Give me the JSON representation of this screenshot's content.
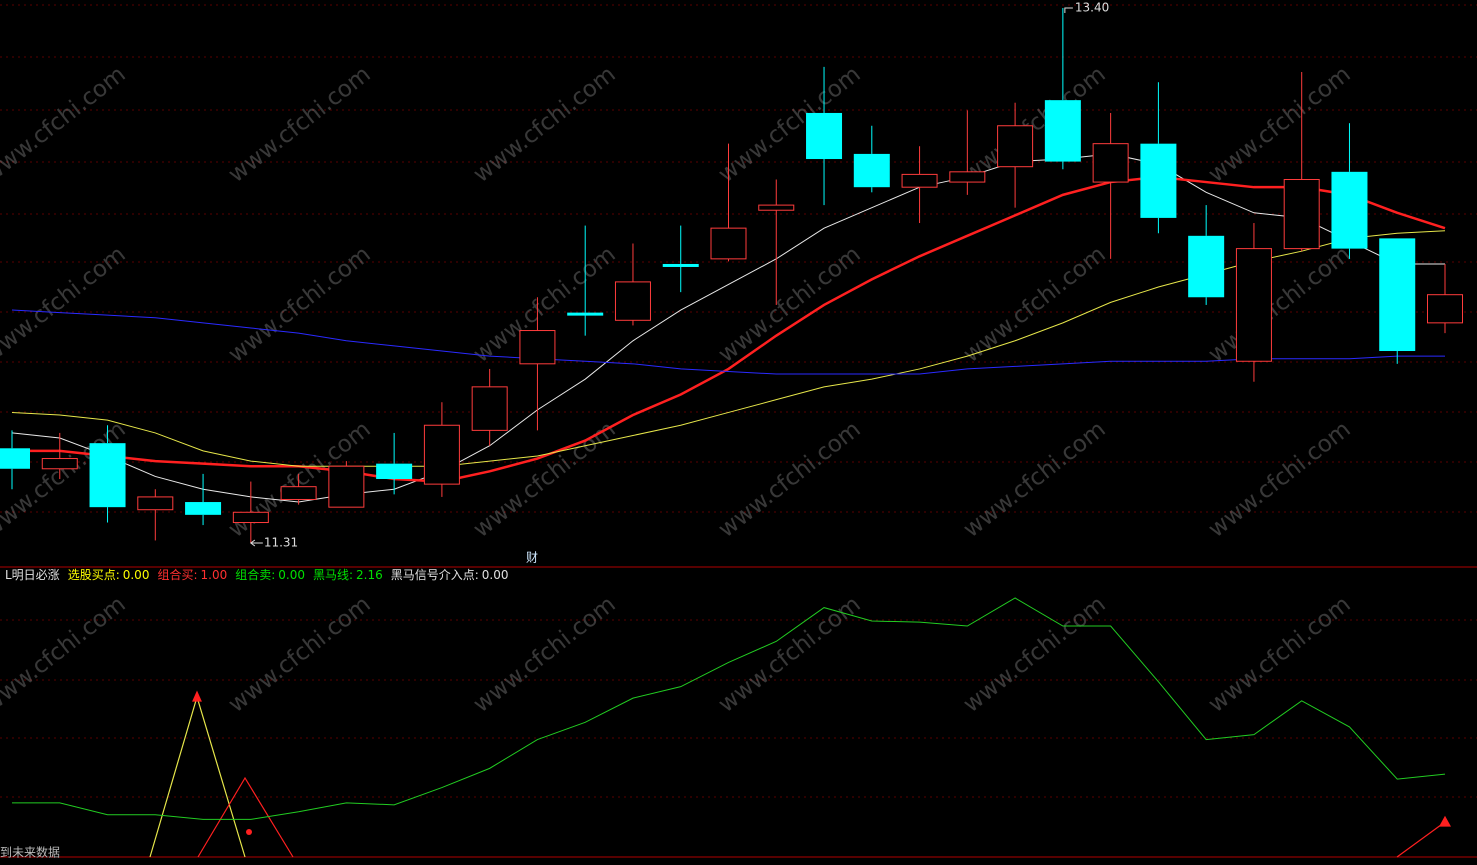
{
  "chart_data": [
    {
      "type": "candlestick",
      "up_color": "#ff3c3c",
      "down_color": "#00ffff",
      "open": [
        11.68,
        11.6,
        11.7,
        11.44,
        11.47,
        11.39,
        11.48,
        11.45,
        11.62,
        11.54,
        11.75,
        12.01,
        12.21,
        12.18,
        12.4,
        12.42,
        12.61,
        12.99,
        12.83,
        12.7,
        12.72,
        12.78,
        13.04,
        12.72,
        12.87,
        12.51,
        12.02,
        12.46,
        12.76,
        12.5,
        12.17
      ],
      "high": [
        11.75,
        11.74,
        11.77,
        11.52,
        11.58,
        11.55,
        11.58,
        11.63,
        11.74,
        11.86,
        11.99,
        12.27,
        12.55,
        12.48,
        12.55,
        12.87,
        12.73,
        13.17,
        12.94,
        12.86,
        13.0,
        13.03,
        13.4,
        12.99,
        13.11,
        12.63,
        12.56,
        13.15,
        12.95,
        12.5,
        12.4
      ],
      "low": [
        11.52,
        11.56,
        11.39,
        11.32,
        11.38,
        11.31,
        11.46,
        11.45,
        11.5,
        11.49,
        11.69,
        11.75,
        12.12,
        12.16,
        12.29,
        12.41,
        12.24,
        12.63,
        12.68,
        12.56,
        12.67,
        12.62,
        12.77,
        12.42,
        12.52,
        12.24,
        11.94,
        12.45,
        12.42,
        12.01,
        12.13
      ],
      "close": [
        11.6,
        11.64,
        11.45,
        11.49,
        11.42,
        11.43,
        11.53,
        11.61,
        11.56,
        11.77,
        11.92,
        12.14,
        12.2,
        12.33,
        12.39,
        12.54,
        12.63,
        12.81,
        12.7,
        12.75,
        12.76,
        12.94,
        12.8,
        12.87,
        12.58,
        12.27,
        12.46,
        12.73,
        12.46,
        12.06,
        12.28
      ],
      "series": [
        {
          "color": "#e8e8e8",
          "values": [
            11.74,
            11.72,
            11.65,
            11.57,
            11.52,
            11.49,
            11.47,
            11.5,
            11.52,
            11.59,
            11.69,
            11.83,
            11.95,
            12.1,
            12.22,
            12.32,
            12.42,
            12.54,
            12.62,
            12.7,
            12.74,
            12.8,
            12.81,
            12.83,
            12.79,
            12.68,
            12.6,
            12.58,
            12.49,
            12.4,
            12.4
          ]
        },
        {
          "color": "#ff2020",
          "width": 2.5,
          "values": [
            11.67,
            11.67,
            11.65,
            11.63,
            11.62,
            11.61,
            11.61,
            11.59,
            11.56,
            11.55,
            11.59,
            11.64,
            11.71,
            11.81,
            11.89,
            11.99,
            12.12,
            12.24,
            12.34,
            12.43,
            12.51,
            12.59,
            12.67,
            12.72,
            12.74,
            12.72,
            12.7,
            12.7,
            12.67,
            12.6,
            12.54
          ]
        },
        {
          "color": "#e6e64a",
          "values": [
            11.82,
            11.81,
            11.79,
            11.74,
            11.67,
            11.63,
            11.61,
            11.61,
            11.61,
            11.61,
            11.63,
            11.65,
            11.69,
            11.73,
            11.77,
            11.82,
            11.87,
            11.92,
            11.95,
            11.99,
            12.04,
            12.1,
            12.17,
            12.25,
            12.31,
            12.36,
            12.41,
            12.45,
            12.5,
            12.52,
            12.53
          ]
        },
        {
          "color": "#2a2aff",
          "values": [
            12.22,
            12.21,
            12.2,
            12.19,
            12.17,
            12.15,
            12.13,
            12.1,
            12.08,
            12.06,
            12.04,
            12.03,
            12.02,
            12.01,
            11.99,
            11.98,
            11.97,
            11.97,
            11.97,
            11.97,
            11.99,
            12.0,
            12.01,
            12.02,
            12.02,
            12.02,
            12.03,
            12.03,
            12.03,
            12.04,
            12.04
          ]
        }
      ],
      "annotations": [
        {
          "value": 13.4,
          "label": "13.40"
        },
        {
          "value": 11.31,
          "label": "11.31"
        }
      ],
      "marker": "财",
      "watermark": "www.cfchi.com"
    },
    {
      "type": "line",
      "title": "L明日必涨",
      "readouts": [
        {
          "name": "选股买点:",
          "value": 0,
          "label": "0.00",
          "color": "#ffff00"
        },
        {
          "name": "组合买:",
          "value": 1,
          "label": "1.00",
          "color": "#ff3030"
        },
        {
          "name": "组合卖:",
          "value": 0,
          "label": "0.00",
          "color": "#00e000"
        },
        {
          "name": "黑马线:",
          "value": 2.16,
          "label": "2.16",
          "color": "#00e000"
        },
        {
          "name": "黑马信号介入点:",
          "value": 0,
          "label": "0.00",
          "color": "#e0e0e0"
        }
      ],
      "series": [
        {
          "name": "黑马线",
          "color": "#22cc22",
          "values": [
            1.41,
            1.41,
            1.1,
            1.1,
            0.98,
            0.98,
            1.18,
            1.41,
            1.36,
            1.81,
            2.31,
            3.06,
            3.51,
            4.14,
            4.44,
            5.07,
            5.62,
            6.5,
            6.15,
            6.12,
            6.02,
            6.75,
            6.02,
            6.02,
            4.57,
            3.06,
            3.19,
            4.07,
            3.39,
            2.03,
            2.16
          ]
        }
      ],
      "footer": "到未来数据"
    }
  ]
}
